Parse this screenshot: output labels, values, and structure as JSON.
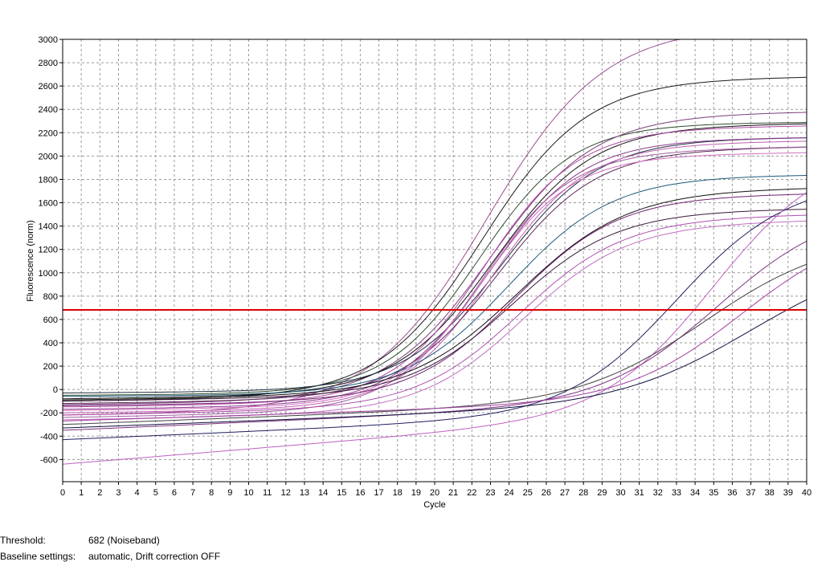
{
  "chart_data": {
    "type": "line",
    "xlabel": "Cycle",
    "ylabel": "Fluorescence (norm)",
    "xlim": [
      0,
      40
    ],
    "ylim": [
      -790,
      3000
    ],
    "x_ticks": [
      0,
      1,
      2,
      3,
      4,
      5,
      6,
      7,
      8,
      9,
      10,
      11,
      12,
      13,
      14,
      15,
      16,
      17,
      18,
      19,
      20,
      21,
      22,
      23,
      24,
      25,
      26,
      27,
      28,
      29,
      30,
      31,
      32,
      33,
      34,
      35,
      36,
      37,
      38,
      39,
      40
    ],
    "y_ticks": [
      -600,
      -400,
      -200,
      0,
      200,
      400,
      600,
      800,
      1000,
      1200,
      1400,
      1600,
      1800,
      2000,
      2200,
      2400,
      2600,
      2800,
      3000
    ],
    "grid": true,
    "threshold": 682,
    "threshold_color": "#e00000",
    "series": [
      {
        "color": "#9a4f8f",
        "base": -220,
        "slope": 2,
        "plateau": 3050,
        "mid": 22.8,
        "k": 0.32
      },
      {
        "color": "#1a1a1a",
        "base": -100,
        "slope": 2,
        "plateau": 2600,
        "mid": 22.6,
        "k": 0.36
      },
      {
        "color": "#2f4a2f",
        "base": -50,
        "slope": 1,
        "plateau": 2250,
        "mid": 22.4,
        "k": 0.4
      },
      {
        "color": "#7a3f7a",
        "base": -130,
        "slope": 2,
        "plateau": 2300,
        "mid": 23.0,
        "k": 0.36
      },
      {
        "color": "#101010",
        "base": -80,
        "slope": 2,
        "plateau": 2200,
        "mid": 23.2,
        "k": 0.38
      },
      {
        "color": "#b04aa5",
        "base": -150,
        "slope": 2,
        "plateau": 2180,
        "mid": 22.7,
        "k": 0.4
      },
      {
        "color": "#203040",
        "base": -30,
        "slope": 1,
        "plateau": 2120,
        "mid": 23.6,
        "k": 0.38
      },
      {
        "color": "#8e3a8e",
        "base": -170,
        "slope": 2,
        "plateau": 2080,
        "mid": 22.9,
        "k": 0.4
      },
      {
        "color": "#c060b0",
        "base": -200,
        "slope": 2,
        "plateau": 2050,
        "mid": 23.1,
        "k": 0.4
      },
      {
        "color": "#5a2a5a",
        "base": -120,
        "slope": 2,
        "plateau": 2000,
        "mid": 23.4,
        "k": 0.38
      },
      {
        "color": "#a05fa0",
        "base": -240,
        "slope": 3,
        "plateau": 1960,
        "mid": 22.5,
        "k": 0.42
      },
      {
        "color": "#1c5a7a",
        "base": -60,
        "slope": 1,
        "plateau": 1800,
        "mid": 24.0,
        "k": 0.36
      },
      {
        "color": "#d070c0",
        "base": -180,
        "slope": 2,
        "plateau": 1950,
        "mid": 22.6,
        "k": 0.42
      },
      {
        "color": "#111111",
        "base": -90,
        "slope": 2,
        "plateau": 1650,
        "mid": 24.5,
        "k": 0.34
      },
      {
        "color": "#702070",
        "base": -140,
        "slope": 2,
        "plateau": 1600,
        "mid": 24.3,
        "k": 0.36
      },
      {
        "color": "#3a1a3a",
        "base": -100,
        "slope": 2,
        "plateau": 1470,
        "mid": 24.2,
        "k": 0.36
      },
      {
        "color": "#b050b0",
        "base": -220,
        "slope": 3,
        "plateau": 1380,
        "mid": 24.6,
        "k": 0.36
      },
      {
        "color": "#c070c0",
        "base": -260,
        "slope": 3,
        "plateau": 1330,
        "mid": 24.8,
        "k": 0.36
      },
      {
        "color": "#202060",
        "base": -430,
        "slope": 7,
        "plateau": 1500,
        "mid": 33.0,
        "k": 0.34
      },
      {
        "color": "#c060c0",
        "base": -640,
        "slope": 13,
        "plateau": 1500,
        "mid": 35.0,
        "k": 0.34
      },
      {
        "color": "#803080",
        "base": -350,
        "slope": 7,
        "plateau": 1280,
        "mid": 35.2,
        "k": 0.32
      },
      {
        "color": "#404040",
        "base": -300,
        "slope": 6,
        "plateau": 1050,
        "mid": 34.5,
        "k": 0.3
      },
      {
        "color": "#a040a0",
        "base": -270,
        "slope": 5,
        "plateau": 1200,
        "mid": 36.5,
        "k": 0.32
      },
      {
        "color": "#101040",
        "base": -330,
        "slope": 6,
        "plateau": 900,
        "mid": 37.0,
        "k": 0.28
      }
    ]
  },
  "footer": {
    "threshold_label": "Threshold:",
    "threshold_value": "682 (Noiseband)",
    "baseline_label": "Baseline settings:",
    "baseline_value": "automatic, Drift correction OFF"
  }
}
